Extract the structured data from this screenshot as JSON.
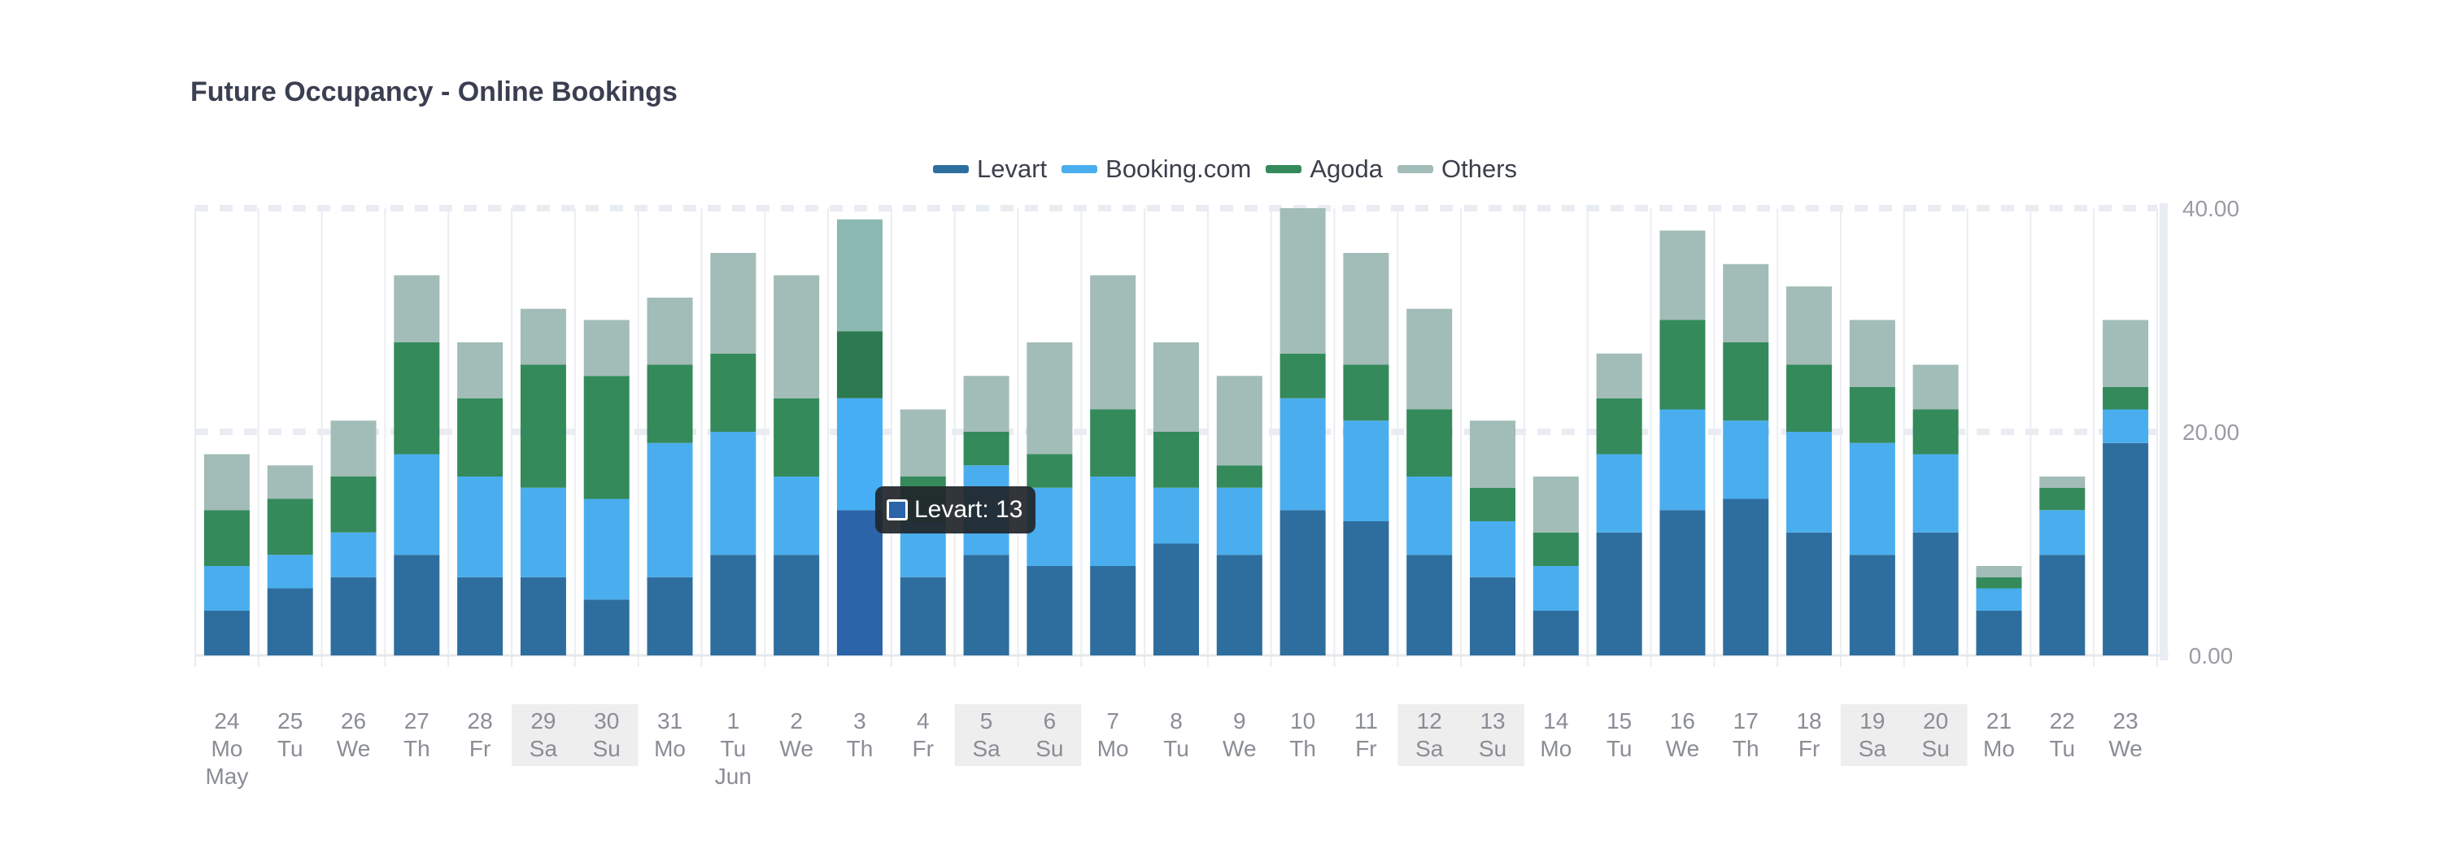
{
  "chart_data": {
    "type": "bar",
    "stacked": true,
    "title": "Future Occupancy - Online Bookings",
    "ylim": [
      0,
      40
    ],
    "y_ticks": [
      "0.00",
      "20.00",
      "40.00"
    ],
    "y_axis_side": "right",
    "legend_position": "top-center",
    "grid": true,
    "categories": [
      {
        "day": "24",
        "dow": "Mo",
        "month": "May",
        "weekend": false
      },
      {
        "day": "25",
        "dow": "Tu",
        "month": "",
        "weekend": false
      },
      {
        "day": "26",
        "dow": "We",
        "month": "",
        "weekend": false
      },
      {
        "day": "27",
        "dow": "Th",
        "month": "",
        "weekend": false
      },
      {
        "day": "28",
        "dow": "Fr",
        "month": "",
        "weekend": false
      },
      {
        "day": "29",
        "dow": "Sa",
        "month": "",
        "weekend": true
      },
      {
        "day": "30",
        "dow": "Su",
        "month": "",
        "weekend": true
      },
      {
        "day": "31",
        "dow": "Mo",
        "month": "",
        "weekend": false
      },
      {
        "day": "1",
        "dow": "Tu",
        "month": "Jun",
        "weekend": false
      },
      {
        "day": "2",
        "dow": "We",
        "month": "",
        "weekend": false
      },
      {
        "day": "3",
        "dow": "Th",
        "month": "",
        "weekend": false
      },
      {
        "day": "4",
        "dow": "Fr",
        "month": "",
        "weekend": false
      },
      {
        "day": "5",
        "dow": "Sa",
        "month": "",
        "weekend": true
      },
      {
        "day": "6",
        "dow": "Su",
        "month": "",
        "weekend": true
      },
      {
        "day": "7",
        "dow": "Mo",
        "month": "",
        "weekend": false
      },
      {
        "day": "8",
        "dow": "Tu",
        "month": "",
        "weekend": false
      },
      {
        "day": "9",
        "dow": "We",
        "month": "",
        "weekend": false
      },
      {
        "day": "10",
        "dow": "Th",
        "month": "",
        "weekend": false
      },
      {
        "day": "11",
        "dow": "Fr",
        "month": "",
        "weekend": false
      },
      {
        "day": "12",
        "dow": "Sa",
        "month": "",
        "weekend": true
      },
      {
        "day": "13",
        "dow": "Su",
        "month": "",
        "weekend": true
      },
      {
        "day": "14",
        "dow": "Mo",
        "month": "",
        "weekend": false
      },
      {
        "day": "15",
        "dow": "Tu",
        "month": "",
        "weekend": false
      },
      {
        "day": "16",
        "dow": "We",
        "month": "",
        "weekend": false
      },
      {
        "day": "17",
        "dow": "Th",
        "month": "",
        "weekend": false
      },
      {
        "day": "18",
        "dow": "Fr",
        "month": "",
        "weekend": false
      },
      {
        "day": "19",
        "dow": "Sa",
        "month": "",
        "weekend": true
      },
      {
        "day": "20",
        "dow": "Su",
        "month": "",
        "weekend": true
      },
      {
        "day": "21",
        "dow": "Mo",
        "month": "",
        "weekend": false
      },
      {
        "day": "22",
        "dow": "Tu",
        "month": "",
        "weekend": false
      },
      {
        "day": "23",
        "dow": "We",
        "month": "",
        "weekend": false
      }
    ],
    "series": [
      {
        "name": "Levart",
        "color": "#2e6e9e",
        "values": [
          4,
          6,
          7,
          9,
          7,
          7,
          5,
          7,
          9,
          9,
          13,
          7,
          9,
          8,
          8,
          10,
          9,
          13,
          12,
          9,
          7,
          4,
          11,
          13,
          14,
          11,
          9,
          11,
          4,
          9,
          19
        ]
      },
      {
        "name": "Booking.com",
        "color": "#4aaeee",
        "values": [
          4,
          3,
          4,
          9,
          9,
          8,
          9,
          12,
          11,
          7,
          10,
          5,
          8,
          7,
          8,
          5,
          6,
          10,
          9,
          7,
          5,
          4,
          7,
          9,
          7,
          9,
          10,
          7,
          2,
          4,
          3
        ]
      },
      {
        "name": "Agoda",
        "color": "#348a5a",
        "values": [
          5,
          5,
          5,
          10,
          7,
          11,
          11,
          7,
          7,
          7,
          6,
          4,
          3,
          3,
          6,
          5,
          2,
          4,
          5,
          6,
          3,
          3,
          5,
          8,
          7,
          6,
          5,
          4,
          1,
          2,
          2
        ]
      },
      {
        "name": "Others",
        "color": "#a2bcb7",
        "values": [
          5,
          3,
          5,
          6,
          5,
          5,
          5,
          6,
          9,
          11,
          10,
          6,
          5,
          10,
          12,
          8,
          8,
          13,
          10,
          9,
          6,
          5,
          4,
          8,
          7,
          7,
          6,
          4,
          1,
          1,
          6
        ]
      }
    ],
    "highlighted_category_index": 10,
    "tooltip": {
      "series": "Levart",
      "value": 13,
      "text": "Levart: 13"
    }
  }
}
